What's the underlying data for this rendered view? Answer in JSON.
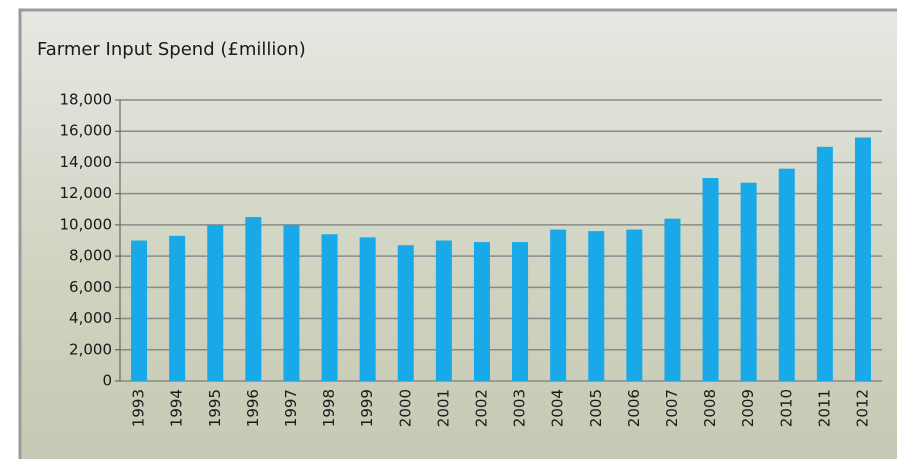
{
  "chart_data": {
    "type": "bar",
    "title": "Farmer Input Spend (£million)",
    "categories": [
      "1993",
      "1994",
      "1995",
      "1996",
      "1997",
      "1998",
      "1999",
      "2000",
      "2001",
      "2002",
      "2003",
      "2004",
      "2005",
      "2006",
      "2007",
      "2008",
      "2009",
      "2010",
      "2011",
      "2012"
    ],
    "values": [
      9000,
      9300,
      10000,
      10500,
      10000,
      9400,
      9200,
      8700,
      9000,
      8900,
      8900,
      9700,
      9600,
      9700,
      10400,
      13000,
      12700,
      13600,
      15000,
      15600
    ],
    "color": "#19a9e8",
    "ylim": [
      0,
      18000
    ],
    "yticks": [
      0,
      {
        "value": 2000,
        "label": "2,000"
      },
      {
        "value": 4000,
        "label": "4,000"
      },
      {
        "value": 6000,
        "label": "6,000"
      },
      {
        "value": 8000,
        "label": "8,000"
      },
      {
        "value": 10000,
        "label": "10,000"
      },
      {
        "value": 12000,
        "label": "12,000"
      },
      {
        "value": 14000,
        "label": "14,000"
      },
      {
        "value": 16000,
        "label": "16,000"
      },
      {
        "value": 18000,
        "label": "18,000"
      }
    ],
    "grid": true
  }
}
